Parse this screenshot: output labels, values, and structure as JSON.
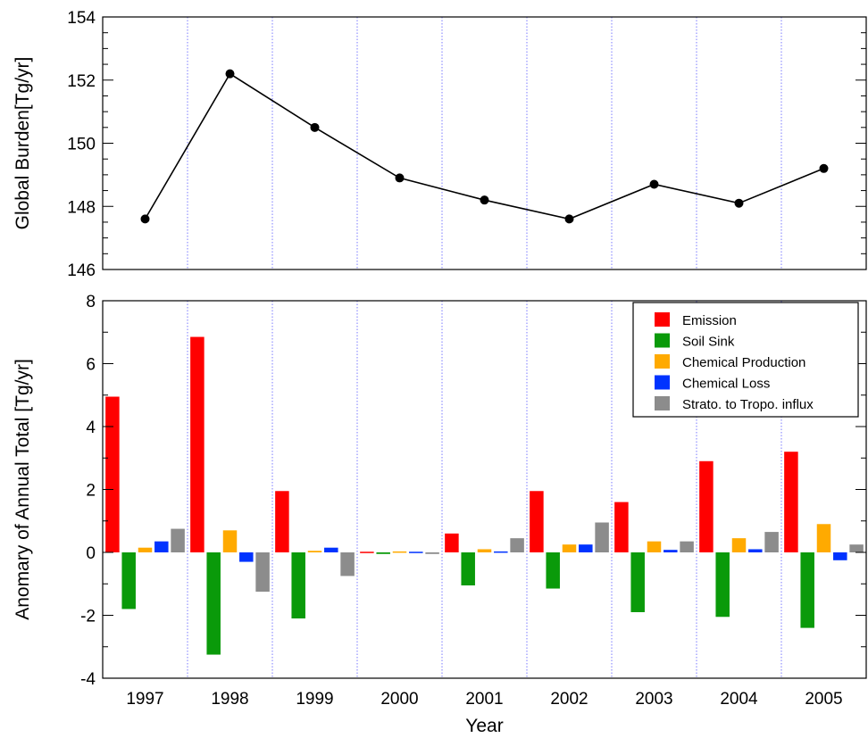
{
  "chart_data": [
    {
      "type": "line",
      "ylabel": "Global Burden[Tg/yr]",
      "ylim": [
        146,
        154
      ],
      "yticks": [
        "146",
        "148",
        "150",
        "152",
        "154"
      ],
      "x": [
        "1997",
        "1998",
        "1999",
        "2000",
        "2001",
        "2002",
        "2003",
        "2004",
        "2005"
      ],
      "values": [
        147.6,
        152.2,
        150.5,
        148.9,
        148.2,
        147.6,
        148.7,
        148.1,
        149.2
      ],
      "line_color": "#000000"
    },
    {
      "type": "bar",
      "xlabel": "Year",
      "ylabel": "Anomary of Annual Total [Tg/yr]",
      "ylim": [
        -4,
        8
      ],
      "yticks": [
        "-4",
        "-2",
        "0",
        "2",
        "4",
        "6",
        "8"
      ],
      "categories": [
        "1997",
        "1998",
        "1999",
        "2000",
        "2001",
        "2002",
        "2003",
        "2004",
        "2005"
      ],
      "legend_position": "top-right",
      "series": [
        {
          "name": "Emission",
          "color": "#ff0000",
          "values": [
            4.95,
            6.85,
            1.95,
            0.02,
            0.6,
            1.95,
            1.6,
            2.9,
            3.2
          ]
        },
        {
          "name": "Soil Sink",
          "color": "#0a9a0a",
          "values": [
            -1.8,
            -3.25,
            -2.1,
            -0.05,
            -1.05,
            -1.15,
            -1.9,
            -2.05,
            -2.4
          ]
        },
        {
          "name": "Chemical Production",
          "color": "#ffaa00",
          "values": [
            0.15,
            0.7,
            0.05,
            0.03,
            0.1,
            0.25,
            0.35,
            0.45,
            0.9
          ]
        },
        {
          "name": "Chemical Loss",
          "color": "#0033ff",
          "values": [
            0.35,
            -0.3,
            0.15,
            0.02,
            0.03,
            0.25,
            0.08,
            0.1,
            -0.25
          ]
        },
        {
          "name": "Strato. to Tropo. influx",
          "color": "#8c8c8c",
          "values": [
            0.75,
            -1.25,
            -0.75,
            -0.05,
            0.45,
            0.95,
            0.35,
            0.65,
            0.25
          ]
        }
      ]
    }
  ]
}
